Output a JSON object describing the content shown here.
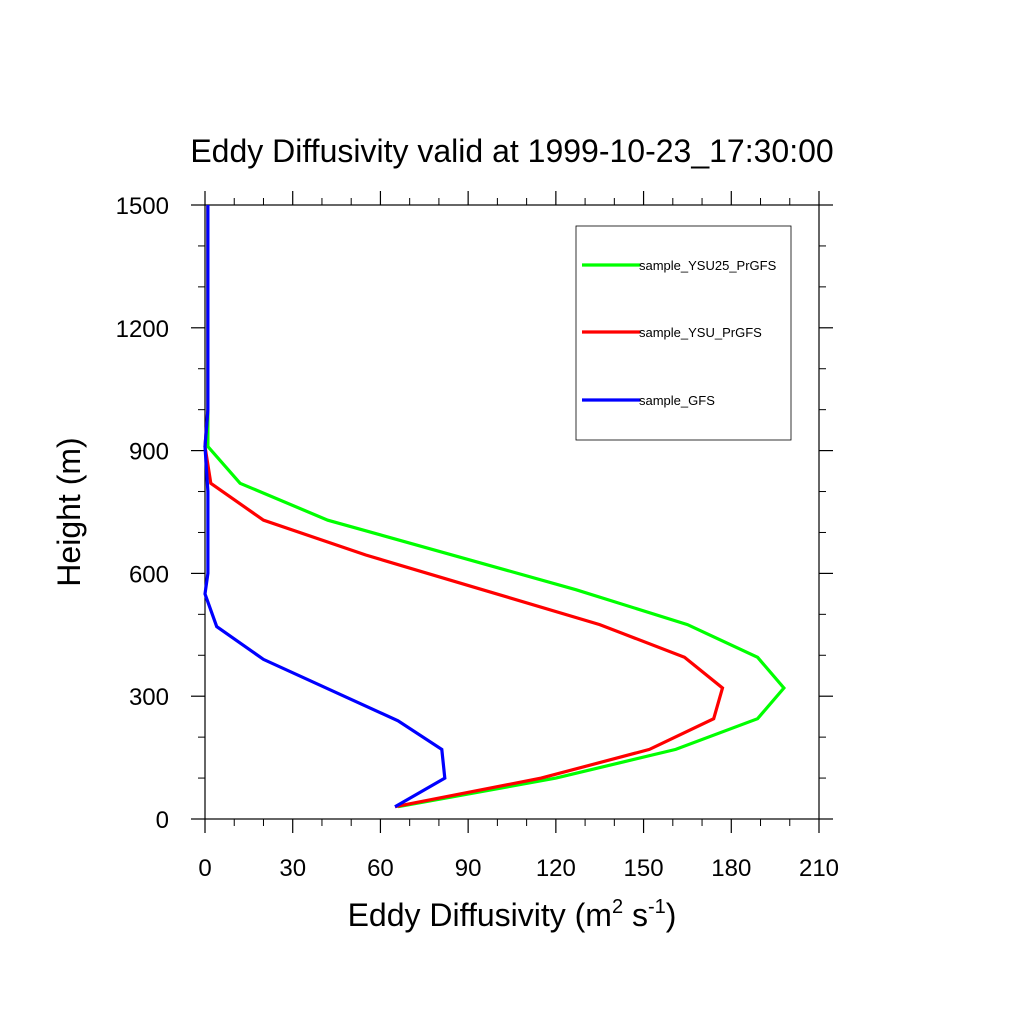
{
  "chart_data": {
    "type": "line",
    "title": "Eddy Diffusivity valid at 1999-10-23_17:30:00",
    "xlabel_main": "Eddy Diffusivity (m",
    "xlabel_sup1": "2",
    "xlabel_mid": " s",
    "xlabel_sup2": "-1",
    "xlabel_end": ")",
    "ylabel": "Height (m)",
    "xlim": [
      0,
      210
    ],
    "ylim": [
      0,
      1500
    ],
    "x_ticks": [
      0,
      30,
      60,
      90,
      120,
      150,
      180,
      210
    ],
    "y_ticks": [
      0,
      300,
      600,
      900,
      1200,
      1500
    ],
    "grid": false,
    "legend_position": "top-right",
    "series": [
      {
        "name": "sample_YSU25_PrGFS",
        "color": "#00ff00",
        "points": [
          [
            66,
            30
          ],
          [
            120,
            100
          ],
          [
            161,
            170
          ],
          [
            189,
            245
          ],
          [
            198,
            320
          ],
          [
            189,
            395
          ],
          [
            165,
            475
          ],
          [
            127,
            560
          ],
          [
            82,
            650
          ],
          [
            42,
            730
          ],
          [
            12,
            820
          ],
          [
            1,
            910
          ],
          [
            1,
            1000
          ],
          [
            1,
            1100
          ],
          [
            1,
            1200
          ],
          [
            1,
            1300
          ],
          [
            1,
            1400
          ],
          [
            1,
            1500
          ]
        ]
      },
      {
        "name": "sample_YSU_PrGFS",
        "color": "#ff0000",
        "points": [
          [
            65,
            30
          ],
          [
            115,
            100
          ],
          [
            152,
            170
          ],
          [
            174,
            245
          ],
          [
            177,
            320
          ],
          [
            164,
            395
          ],
          [
            135,
            475
          ],
          [
            95,
            560
          ],
          [
            55,
            645
          ],
          [
            20,
            730
          ],
          [
            2,
            820
          ],
          [
            0,
            910
          ],
          [
            1,
            1000
          ],
          [
            1,
            1100
          ],
          [
            1,
            1200
          ],
          [
            1,
            1300
          ],
          [
            1,
            1400
          ],
          [
            1,
            1500
          ]
        ]
      },
      {
        "name": "sample_GFS",
        "color": "#0000ff",
        "points": [
          [
            65,
            30
          ],
          [
            82,
            100
          ],
          [
            81,
            170
          ],
          [
            66,
            240
          ],
          [
            20,
            390
          ],
          [
            4,
            470
          ],
          [
            0,
            550
          ],
          [
            1,
            600
          ],
          [
            1,
            700
          ],
          [
            1,
            800
          ],
          [
            0,
            910
          ],
          [
            1,
            1000
          ],
          [
            1,
            1100
          ],
          [
            1,
            1200
          ],
          [
            1,
            1300
          ],
          [
            1,
            1400
          ],
          [
            1,
            1500
          ]
        ]
      }
    ]
  }
}
